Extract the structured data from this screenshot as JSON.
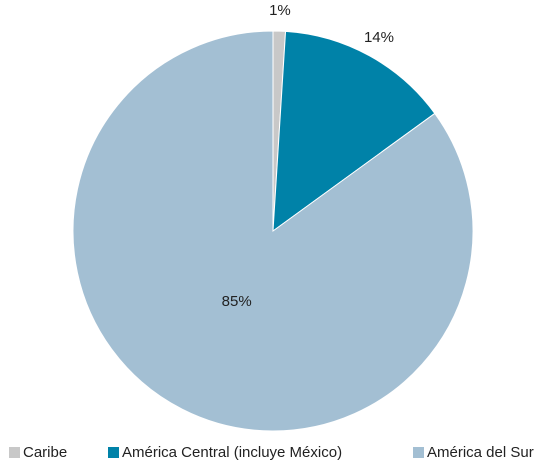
{
  "chart_data": {
    "type": "pie",
    "categories": [
      "Caribe",
      "América Central (incluye México)",
      "América del Sur"
    ],
    "values": [
      1,
      14,
      85
    ],
    "value_labels": [
      "1%",
      "14%",
      "85%"
    ],
    "colors": [
      "#c8c8c8",
      "#0082a8",
      "#a3bfd3"
    ]
  }
}
